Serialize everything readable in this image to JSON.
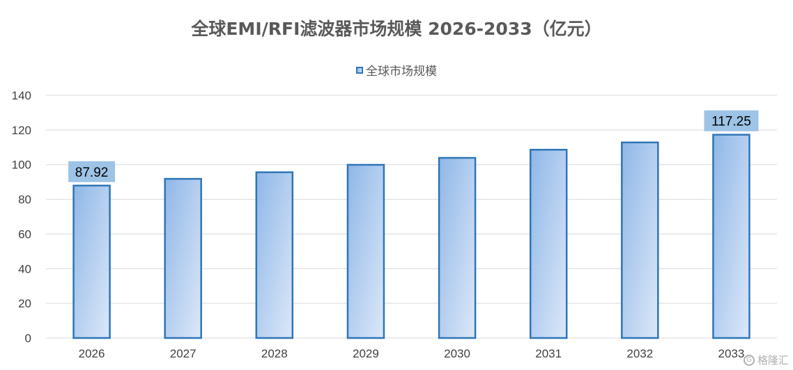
{
  "chart_data": {
    "type": "bar",
    "title": "全球EMI/RFI滤波器市场规模 2026-2033（亿元）",
    "categories": [
      "2026",
      "2027",
      "2028",
      "2029",
      "2030",
      "2031",
      "2032",
      "2033"
    ],
    "series": [
      {
        "name": "全球市场规模",
        "values": [
          87.92,
          91.8,
          95.6,
          99.9,
          103.9,
          108.6,
          112.8,
          117.25
        ]
      }
    ],
    "data_labels": [
      {
        "category": "2026",
        "text": "87.92"
      },
      {
        "category": "2033",
        "text": "117.25"
      }
    ],
    "y_ticks": [
      "0",
      "20",
      "40",
      "60",
      "80",
      "100",
      "120",
      "140"
    ],
    "ylim": [
      0,
      140
    ],
    "xlabel": "",
    "ylabel": "",
    "grid": "horizontal",
    "legend_position": "top",
    "colors": {
      "bar_fill_start": "#8fb7e8",
      "bar_fill_end": "#dce8f8",
      "bar_border": "#2e75b6",
      "label_box": "#9dc3e6",
      "gridline": "#d9d9d9",
      "title_text": "#595959",
      "axis_text": "#404040"
    }
  },
  "watermark": {
    "icon": "gelonghui-logo-icon",
    "text": "格隆汇"
  }
}
